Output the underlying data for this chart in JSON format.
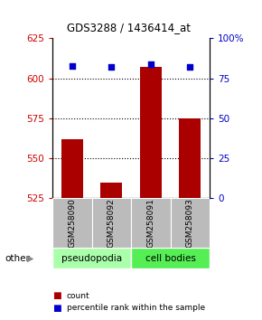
{
  "title": "GDS3288 / 1436414_at",
  "categories": [
    "GSM258090",
    "GSM258092",
    "GSM258091",
    "GSM258093"
  ],
  "bar_values": [
    562,
    535,
    607,
    575
  ],
  "percentile_values": [
    83,
    82,
    84,
    82
  ],
  "ylim_left": [
    525,
    625
  ],
  "ylim_right": [
    0,
    100
  ],
  "yticks_left": [
    525,
    550,
    575,
    600,
    625
  ],
  "yticks_right": [
    0,
    25,
    50,
    75,
    100
  ],
  "bar_color": "#aa0000",
  "dot_color": "#0000cc",
  "bar_width": 0.55,
  "groups": [
    {
      "label": "pseudopodia",
      "color": "#aaffaa",
      "cols": [
        0,
        1
      ]
    },
    {
      "label": "cell bodies",
      "color": "#55ee55",
      "cols": [
        2,
        3
      ]
    }
  ],
  "other_label": "other",
  "legend_count_label": "count",
  "legend_pct_label": "percentile rank within the sample",
  "left_tick_color": "#cc0000",
  "right_tick_color": "#0000cc",
  "background_color": "#ffffff",
  "x_label_bg": "#bbbbbb"
}
